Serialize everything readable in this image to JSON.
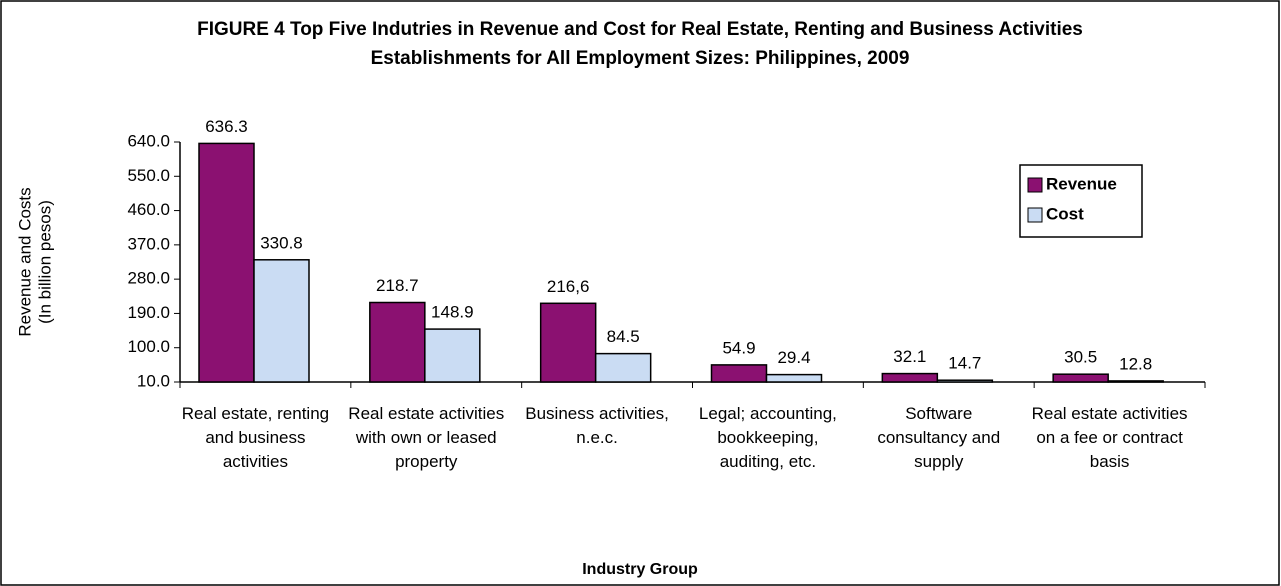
{
  "chart_data": {
    "type": "bar",
    "title": "FIGURE 4  Top Five Indutries in Revenue and Cost for Real Estate, Renting and Business Activities",
    "subtitle": "Establishments for All Employment Sizes: Philippines, 2009",
    "y_label": [
      "Revenue and Costs",
      "(In billion pesos)"
    ],
    "x_label": "Industry Group",
    "categories": [
      "Real estate, renting and business activities",
      "Real estate activities with own or leased property",
      "Business activities, n.e.c.",
      "Legal; accounting, bookkeeping, auditing, etc.",
      "Software consultancy and supply",
      "Real estate activities on a fee or contract basis"
    ],
    "series": [
      {
        "name": "Revenue",
        "color": "#8b1171",
        "values": [
          636.3,
          218.7,
          216.6,
          54.9,
          32.1,
          30.5
        ],
        "value_labels": [
          "636.3",
          "218.7",
          "216,6",
          "54.9",
          "32.1",
          "30.5"
        ]
      },
      {
        "name": "Cost",
        "color": "#cadcf3",
        "values": [
          330.8,
          148.9,
          84.5,
          29.4,
          14.7,
          12.8
        ]
      }
    ],
    "ylim": [
      10,
      640
    ],
    "yticks": [
      {
        "value": 10,
        "label": "10.0"
      },
      {
        "value": 100,
        "label": "100.0"
      },
      {
        "value": 190,
        "label": "190.0"
      },
      {
        "value": 280,
        "label": "280.0"
      },
      {
        "value": 370,
        "label": "370.0"
      },
      {
        "value": 460,
        "label": "460.0"
      },
      {
        "value": 550,
        "label": "550.0"
      },
      {
        "value": 640,
        "label": "640.0"
      }
    ],
    "grid": false,
    "legend": "upper right"
  }
}
